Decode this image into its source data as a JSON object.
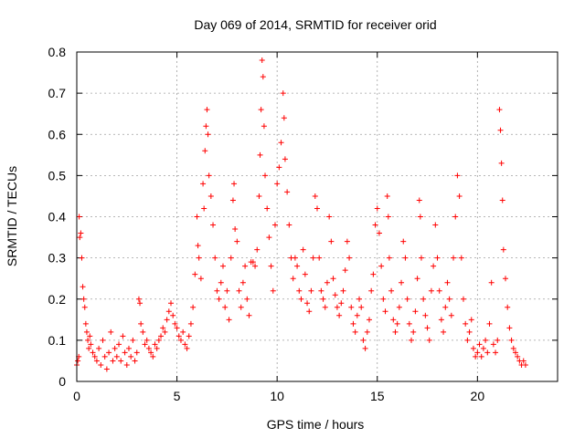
{
  "chart_data": {
    "type": "scatter",
    "title": "Day 069 of 2014, SRMTID for receiver orid",
    "xlabel": "GPS time / hours",
    "ylabel": "SRMTID / TECUs",
    "xlim": [
      0,
      24
    ],
    "ylim": [
      0,
      0.8
    ],
    "x_ticks": [
      0,
      5,
      10,
      15,
      20
    ],
    "y_ticks": [
      0,
      0.1,
      0.2,
      0.3,
      0.4,
      0.5,
      0.6,
      0.7,
      0.8
    ],
    "x_tick_labels": [
      "0",
      "5",
      "10",
      "15",
      "20"
    ],
    "y_tick_labels": [
      "0",
      "0.1",
      "0.2",
      "0.3",
      "0.4",
      "0.5",
      "0.6",
      "0.7",
      "0.8"
    ],
    "grid": true,
    "marker": "plus",
    "series": [
      {
        "name": "SRMTID",
        "color": "#ff0000",
        "points": [
          [
            0.0,
            0.04
          ],
          [
            0.05,
            0.05
          ],
          [
            0.1,
            0.06
          ],
          [
            0.12,
            0.4
          ],
          [
            0.15,
            0.35
          ],
          [
            0.2,
            0.36
          ],
          [
            0.25,
            0.3
          ],
          [
            0.3,
            0.23
          ],
          [
            0.35,
            0.2
          ],
          [
            0.4,
            0.18
          ],
          [
            0.45,
            0.14
          ],
          [
            0.5,
            0.12
          ],
          [
            0.55,
            0.1
          ],
          [
            0.6,
            0.08
          ],
          [
            0.65,
            0.11
          ],
          [
            0.7,
            0.09
          ],
          [
            0.8,
            0.07
          ],
          [
            0.9,
            0.06
          ],
          [
            1.0,
            0.05
          ],
          [
            1.1,
            0.08
          ],
          [
            1.2,
            0.04
          ],
          [
            1.3,
            0.1
          ],
          [
            1.4,
            0.06
          ],
          [
            1.5,
            0.03
          ],
          [
            1.6,
            0.07
          ],
          [
            1.7,
            0.12
          ],
          [
            1.8,
            0.05
          ],
          [
            1.9,
            0.08
          ],
          [
            2.0,
            0.06
          ],
          [
            2.1,
            0.09
          ],
          [
            2.2,
            0.05
          ],
          [
            2.3,
            0.11
          ],
          [
            2.4,
            0.07
          ],
          [
            2.5,
            0.04
          ],
          [
            2.6,
            0.08
          ],
          [
            2.7,
            0.06
          ],
          [
            2.8,
            0.1
          ],
          [
            2.9,
            0.05
          ],
          [
            3.0,
            0.07
          ],
          [
            3.1,
            0.2
          ],
          [
            3.15,
            0.19
          ],
          [
            3.2,
            0.14
          ],
          [
            3.3,
            0.12
          ],
          [
            3.4,
            0.09
          ],
          [
            3.5,
            0.1
          ],
          [
            3.6,
            0.08
          ],
          [
            3.7,
            0.07
          ],
          [
            3.8,
            0.06
          ],
          [
            3.9,
            0.09
          ],
          [
            4.0,
            0.08
          ],
          [
            4.1,
            0.1
          ],
          [
            4.2,
            0.11
          ],
          [
            4.3,
            0.13
          ],
          [
            4.4,
            0.12
          ],
          [
            4.5,
            0.15
          ],
          [
            4.6,
            0.17
          ],
          [
            4.7,
            0.19
          ],
          [
            4.8,
            0.16
          ],
          [
            4.9,
            0.14
          ],
          [
            5.0,
            0.13
          ],
          [
            5.1,
            0.11
          ],
          [
            5.2,
            0.1
          ],
          [
            5.3,
            0.12
          ],
          [
            5.4,
            0.09
          ],
          [
            5.5,
            0.08
          ],
          [
            5.6,
            0.11
          ],
          [
            5.7,
            0.14
          ],
          [
            5.8,
            0.18
          ],
          [
            5.9,
            0.26
          ],
          [
            6.0,
            0.4
          ],
          [
            6.05,
            0.33
          ],
          [
            6.1,
            0.3
          ],
          [
            6.2,
            0.25
          ],
          [
            6.3,
            0.48
          ],
          [
            6.35,
            0.42
          ],
          [
            6.4,
            0.56
          ],
          [
            6.45,
            0.62
          ],
          [
            6.5,
            0.66
          ],
          [
            6.55,
            0.6
          ],
          [
            6.6,
            0.5
          ],
          [
            6.7,
            0.45
          ],
          [
            6.8,
            0.38
          ],
          [
            6.9,
            0.3
          ],
          [
            7.0,
            0.22
          ],
          [
            7.1,
            0.2
          ],
          [
            7.2,
            0.24
          ],
          [
            7.3,
            0.28
          ],
          [
            7.4,
            0.18
          ],
          [
            7.5,
            0.22
          ],
          [
            7.6,
            0.15
          ],
          [
            7.7,
            0.3
          ],
          [
            7.8,
            0.44
          ],
          [
            7.85,
            0.48
          ],
          [
            7.9,
            0.37
          ],
          [
            8.0,
            0.34
          ],
          [
            8.1,
            0.22
          ],
          [
            8.2,
            0.18
          ],
          [
            8.3,
            0.24
          ],
          [
            8.4,
            0.28
          ],
          [
            8.5,
            0.2
          ],
          [
            8.6,
            0.16
          ],
          [
            8.7,
            0.29
          ],
          [
            8.8,
            0.29
          ],
          [
            8.9,
            0.28
          ],
          [
            9.0,
            0.32
          ],
          [
            9.1,
            0.45
          ],
          [
            9.15,
            0.55
          ],
          [
            9.2,
            0.66
          ],
          [
            9.25,
            0.78
          ],
          [
            9.3,
            0.74
          ],
          [
            9.35,
            0.62
          ],
          [
            9.4,
            0.5
          ],
          [
            9.5,
            0.42
          ],
          [
            9.6,
            0.35
          ],
          [
            9.7,
            0.28
          ],
          [
            9.8,
            0.22
          ],
          [
            9.9,
            0.38
          ],
          [
            10.0,
            0.48
          ],
          [
            10.1,
            0.52
          ],
          [
            10.2,
            0.58
          ],
          [
            10.3,
            0.7
          ],
          [
            10.35,
            0.64
          ],
          [
            10.4,
            0.54
          ],
          [
            10.5,
            0.46
          ],
          [
            10.6,
            0.38
          ],
          [
            10.7,
            0.3
          ],
          [
            10.8,
            0.25
          ],
          [
            10.9,
            0.3
          ],
          [
            11.0,
            0.28
          ],
          [
            11.1,
            0.22
          ],
          [
            11.2,
            0.2
          ],
          [
            11.3,
            0.32
          ],
          [
            11.4,
            0.26
          ],
          [
            11.5,
            0.19
          ],
          [
            11.6,
            0.17
          ],
          [
            11.7,
            0.22
          ],
          [
            11.8,
            0.3
          ],
          [
            11.9,
            0.45
          ],
          [
            12.0,
            0.42
          ],
          [
            12.1,
            0.3
          ],
          [
            12.2,
            0.22
          ],
          [
            12.3,
            0.2
          ],
          [
            12.4,
            0.18
          ],
          [
            12.5,
            0.24
          ],
          [
            12.6,
            0.4
          ],
          [
            12.7,
            0.34
          ],
          [
            12.8,
            0.25
          ],
          [
            12.9,
            0.21
          ],
          [
            13.0,
            0.18
          ],
          [
            13.1,
            0.16
          ],
          [
            13.2,
            0.19
          ],
          [
            13.3,
            0.22
          ],
          [
            13.4,
            0.27
          ],
          [
            13.5,
            0.34
          ],
          [
            13.6,
            0.3
          ],
          [
            13.7,
            0.18
          ],
          [
            13.8,
            0.14
          ],
          [
            13.9,
            0.12
          ],
          [
            14.0,
            0.16
          ],
          [
            14.1,
            0.2
          ],
          [
            14.2,
            0.18
          ],
          [
            14.3,
            0.1
          ],
          [
            14.4,
            0.08
          ],
          [
            14.5,
            0.12
          ],
          [
            14.6,
            0.15
          ],
          [
            14.7,
            0.22
          ],
          [
            14.8,
            0.26
          ],
          [
            14.9,
            0.38
          ],
          [
            15.0,
            0.42
          ],
          [
            15.1,
            0.36
          ],
          [
            15.2,
            0.28
          ],
          [
            15.3,
            0.2
          ],
          [
            15.4,
            0.17
          ],
          [
            15.5,
            0.45
          ],
          [
            15.55,
            0.4
          ],
          [
            15.6,
            0.3
          ],
          [
            15.7,
            0.22
          ],
          [
            15.8,
            0.15
          ],
          [
            15.9,
            0.12
          ],
          [
            16.0,
            0.14
          ],
          [
            16.1,
            0.18
          ],
          [
            16.2,
            0.24
          ],
          [
            16.3,
            0.34
          ],
          [
            16.4,
            0.3
          ],
          [
            16.5,
            0.2
          ],
          [
            16.6,
            0.14
          ],
          [
            16.7,
            0.1
          ],
          [
            16.8,
            0.12
          ],
          [
            16.9,
            0.17
          ],
          [
            17.0,
            0.25
          ],
          [
            17.1,
            0.44
          ],
          [
            17.15,
            0.4
          ],
          [
            17.2,
            0.3
          ],
          [
            17.3,
            0.2
          ],
          [
            17.4,
            0.16
          ],
          [
            17.5,
            0.13
          ],
          [
            17.6,
            0.1
          ],
          [
            17.7,
            0.22
          ],
          [
            17.8,
            0.28
          ],
          [
            17.9,
            0.38
          ],
          [
            18.0,
            0.3
          ],
          [
            18.1,
            0.22
          ],
          [
            18.2,
            0.15
          ],
          [
            18.3,
            0.12
          ],
          [
            18.4,
            0.18
          ],
          [
            18.5,
            0.24
          ],
          [
            18.6,
            0.2
          ],
          [
            18.7,
            0.16
          ],
          [
            18.8,
            0.3
          ],
          [
            18.9,
            0.4
          ],
          [
            19.0,
            0.5
          ],
          [
            19.1,
            0.45
          ],
          [
            19.2,
            0.3
          ],
          [
            19.3,
            0.2
          ],
          [
            19.4,
            0.14
          ],
          [
            19.5,
            0.1
          ],
          [
            19.6,
            0.12
          ],
          [
            19.7,
            0.15
          ],
          [
            19.8,
            0.08
          ],
          [
            19.9,
            0.06
          ],
          [
            20.0,
            0.07
          ],
          [
            20.1,
            0.09
          ],
          [
            20.2,
            0.06
          ],
          [
            20.3,
            0.08
          ],
          [
            20.4,
            0.1
          ],
          [
            20.5,
            0.07
          ],
          [
            20.6,
            0.14
          ],
          [
            20.7,
            0.24
          ],
          [
            20.8,
            0.09
          ],
          [
            20.9,
            0.07
          ],
          [
            21.0,
            0.1
          ],
          [
            21.1,
            0.66
          ],
          [
            21.15,
            0.61
          ],
          [
            21.2,
            0.53
          ],
          [
            21.25,
            0.44
          ],
          [
            21.3,
            0.32
          ],
          [
            21.4,
            0.25
          ],
          [
            21.5,
            0.18
          ],
          [
            21.6,
            0.13
          ],
          [
            21.7,
            0.1
          ],
          [
            21.8,
            0.08
          ],
          [
            21.9,
            0.07
          ],
          [
            22.0,
            0.06
          ],
          [
            22.1,
            0.05
          ],
          [
            22.2,
            0.04
          ],
          [
            22.3,
            0.05
          ],
          [
            22.4,
            0.04
          ]
        ]
      }
    ]
  }
}
